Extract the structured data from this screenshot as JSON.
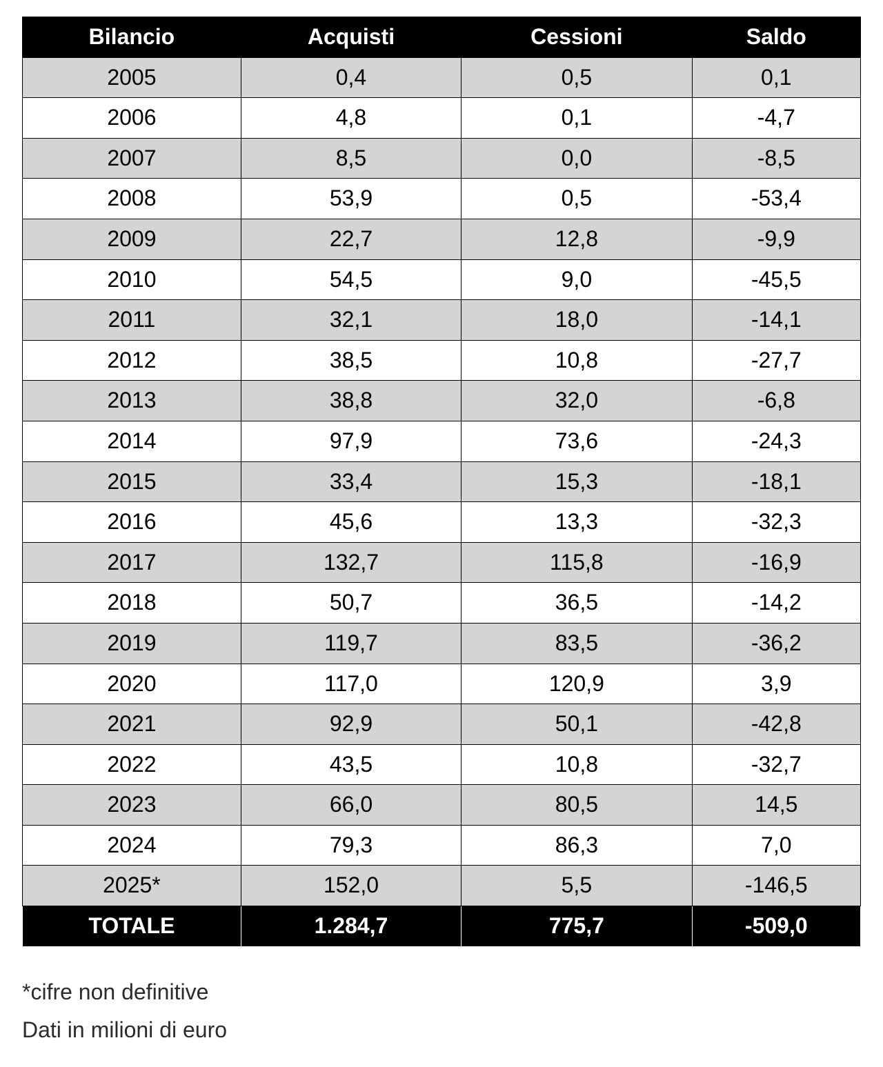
{
  "table": {
    "type": "table",
    "columns": [
      "Bilancio",
      "Acquisti",
      "Cessioni",
      "Saldo"
    ],
    "column_count": 4,
    "alignment": "center",
    "rows": [
      [
        "2005",
        "0,4",
        "0,5",
        "0,1"
      ],
      [
        "2006",
        "4,8",
        "0,1",
        "-4,7"
      ],
      [
        "2007",
        "8,5",
        "0,0",
        "-8,5"
      ],
      [
        "2008",
        "53,9",
        "0,5",
        "-53,4"
      ],
      [
        "2009",
        "22,7",
        "12,8",
        "-9,9"
      ],
      [
        "2010",
        "54,5",
        "9,0",
        "-45,5"
      ],
      [
        "2011",
        "32,1",
        "18,0",
        "-14,1"
      ],
      [
        "2012",
        "38,5",
        "10,8",
        "-27,7"
      ],
      [
        "2013",
        "38,8",
        "32,0",
        "-6,8"
      ],
      [
        "2014",
        "97,9",
        "73,6",
        "-24,3"
      ],
      [
        "2015",
        "33,4",
        "15,3",
        "-18,1"
      ],
      [
        "2016",
        "45,6",
        "13,3",
        "-32,3"
      ],
      [
        "2017",
        "132,7",
        "115,8",
        "-16,9"
      ],
      [
        "2018",
        "50,7",
        "36,5",
        "-14,2"
      ],
      [
        "2019",
        "119,7",
        "83,5",
        "-36,2"
      ],
      [
        "2020",
        "117,0",
        "120,9",
        "3,9"
      ],
      [
        "2021",
        "92,9",
        "50,1",
        "-42,8"
      ],
      [
        "2022",
        "43,5",
        "10,8",
        "-32,7"
      ],
      [
        "2023",
        "66,0",
        "80,5",
        "14,5"
      ],
      [
        "2024",
        "79,3",
        "86,3",
        "7,0"
      ],
      [
        "2025*",
        "152,0",
        "5,5",
        "-146,5"
      ]
    ],
    "total_row": [
      "TOTALE",
      "1.284,7",
      "775,7",
      "-509,0"
    ],
    "header_bg": "#000000",
    "header_fg": "#ffffff",
    "row_odd_bg": "#d4d4d4",
    "row_even_bg": "#ffffff",
    "total_bg": "#000000",
    "total_fg": "#ffffff",
    "border_color": "#000000",
    "font_size": 32,
    "header_font_weight": 700,
    "total_font_weight": 700
  },
  "footnotes": {
    "line1": "*cifre non definitive",
    "line2": "Dati in milioni di euro",
    "font_size": 32,
    "color": "#2b2b2b"
  }
}
